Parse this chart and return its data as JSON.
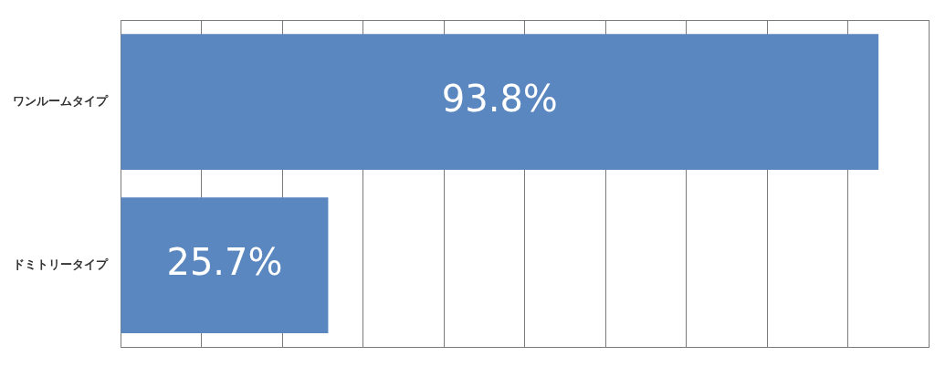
{
  "chart_data": {
    "type": "bar",
    "orientation": "horizontal",
    "categories": [
      "ワンルームタイプ",
      "ドミトリータイプ"
    ],
    "values": [
      93.8,
      25.7
    ],
    "color": "#5b87c0",
    "value_labels": [
      "93.8%",
      "25.7%"
    ],
    "xlim": [
      0,
      100
    ],
    "grid": "x",
    "tick_labels": "y",
    "legend": false
  }
}
